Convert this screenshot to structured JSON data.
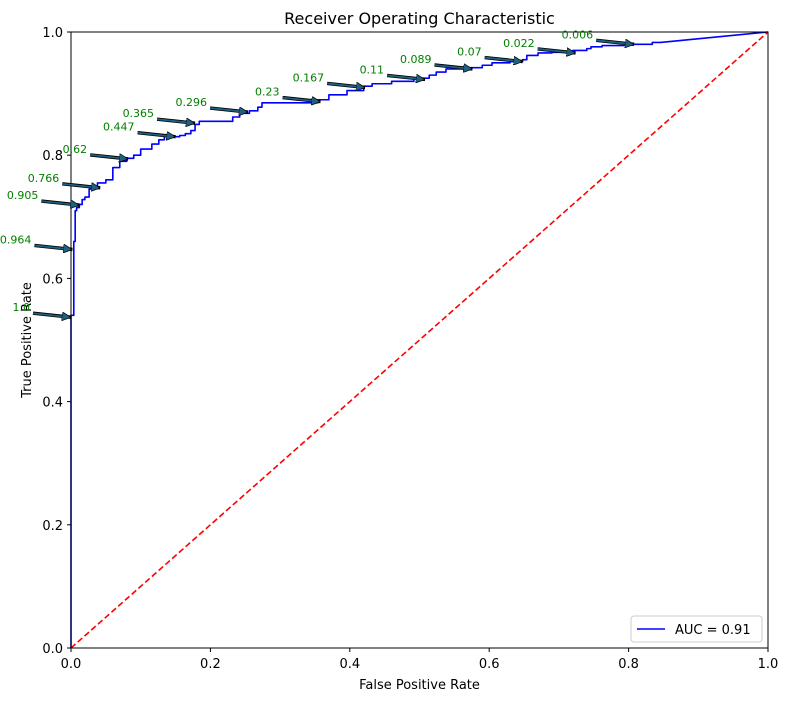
{
  "chart_data": {
    "type": "line",
    "title": "Receiver Operating Characteristic",
    "xlabel": "False Positive Rate",
    "ylabel": "True Positive Rate",
    "xlim": [
      0,
      1
    ],
    "ylim": [
      0,
      1
    ],
    "x_ticks": [
      "0.0",
      "0.2",
      "0.4",
      "0.6",
      "0.8",
      "1.0"
    ],
    "y_ticks": [
      "0.0",
      "0.2",
      "0.4",
      "0.6",
      "0.8",
      "1.0"
    ],
    "grid": false,
    "legend_position": "lower-right",
    "series": [
      {
        "name": "AUC = 0.91",
        "color": "#0000ff",
        "style": "solid",
        "x": [
          0.0,
          0.0,
          0.004,
          0.004,
          0.006,
          0.006,
          0.008,
          0.008,
          0.012,
          0.012,
          0.016,
          0.016,
          0.02,
          0.02,
          0.026,
          0.026,
          0.032,
          0.032,
          0.038,
          0.038,
          0.05,
          0.05,
          0.06,
          0.06,
          0.07,
          0.07,
          0.08,
          0.08,
          0.09,
          0.09,
          0.1,
          0.1,
          0.116,
          0.116,
          0.126,
          0.126,
          0.134,
          0.134,
          0.156,
          0.156,
          0.164,
          0.164,
          0.172,
          0.172,
          0.178,
          0.178,
          0.184,
          0.184,
          0.232,
          0.232,
          0.242,
          0.242,
          0.256,
          0.256,
          0.268,
          0.268,
          0.274,
          0.274,
          0.354,
          0.354,
          0.37,
          0.37,
          0.396,
          0.396,
          0.42,
          0.42,
          0.432,
          0.432,
          0.46,
          0.46,
          0.492,
          0.492,
          0.514,
          0.514,
          0.524,
          0.524,
          0.538,
          0.538,
          0.566,
          0.566,
          0.59,
          0.59,
          0.604,
          0.604,
          0.63,
          0.63,
          0.648,
          0.648,
          0.654,
          0.654,
          0.67,
          0.67,
          0.69,
          0.69,
          0.72,
          0.72,
          0.74,
          0.74,
          0.746,
          0.746,
          0.762,
          0.762,
          0.8,
          0.8,
          0.834,
          0.834,
          0.846,
          1.0
        ],
        "y": [
          0.0,
          0.54,
          0.54,
          0.66,
          0.66,
          0.71,
          0.71,
          0.715,
          0.715,
          0.72,
          0.72,
          0.728,
          0.728,
          0.732,
          0.732,
          0.745,
          0.745,
          0.748,
          0.748,
          0.755,
          0.755,
          0.76,
          0.76,
          0.78,
          0.78,
          0.79,
          0.79,
          0.795,
          0.795,
          0.8,
          0.8,
          0.81,
          0.81,
          0.818,
          0.818,
          0.825,
          0.825,
          0.83,
          0.83,
          0.832,
          0.832,
          0.835,
          0.835,
          0.84,
          0.84,
          0.85,
          0.85,
          0.855,
          0.855,
          0.862,
          0.862,
          0.868,
          0.868,
          0.872,
          0.872,
          0.878,
          0.878,
          0.885,
          0.885,
          0.89,
          0.89,
          0.898,
          0.898,
          0.905,
          0.905,
          0.912,
          0.912,
          0.916,
          0.916,
          0.92,
          0.92,
          0.925,
          0.925,
          0.93,
          0.93,
          0.935,
          0.935,
          0.94,
          0.94,
          0.942,
          0.942,
          0.946,
          0.946,
          0.95,
          0.95,
          0.952,
          0.952,
          0.955,
          0.955,
          0.962,
          0.962,
          0.966,
          0.966,
          0.967,
          0.967,
          0.97,
          0.97,
          0.973,
          0.973,
          0.976,
          0.976,
          0.978,
          0.978,
          0.98,
          0.98,
          0.983,
          0.983,
          1.0
        ]
      },
      {
        "name": "",
        "color": "#ff0000",
        "style": "dashed",
        "x": [
          0,
          1
        ],
        "y": [
          0,
          1
        ]
      }
    ],
    "annotations": [
      {
        "text": "1.0",
        "x": 0.0,
        "y": 0.537
      },
      {
        "text": "0.964",
        "x": 0.002,
        "y": 0.647
      },
      {
        "text": "0.905",
        "x": 0.012,
        "y": 0.719
      },
      {
        "text": "0.766",
        "x": 0.042,
        "y": 0.747
      },
      {
        "text": "0.62",
        "x": 0.082,
        "y": 0.794
      },
      {
        "text": "0.447",
        "x": 0.15,
        "y": 0.83
      },
      {
        "text": "0.365",
        "x": 0.178,
        "y": 0.852
      },
      {
        "text": "0.296",
        "x": 0.254,
        "y": 0.87
      },
      {
        "text": "0.23",
        "x": 0.358,
        "y": 0.887
      },
      {
        "text": "0.167",
        "x": 0.422,
        "y": 0.91
      },
      {
        "text": "0.11",
        "x": 0.508,
        "y": 0.923
      },
      {
        "text": "0.089",
        "x": 0.576,
        "y": 0.94
      },
      {
        "text": "0.07",
        "x": 0.648,
        "y": 0.952
      },
      {
        "text": "0.022",
        "x": 0.724,
        "y": 0.966
      },
      {
        "text": "0.006",
        "x": 0.808,
        "y": 0.98
      }
    ],
    "annotation_color": "#008000",
    "arrow_color": "#1f5f7f",
    "legend": [
      {
        "label": "AUC = 0.91",
        "color": "#0000ff"
      }
    ]
  }
}
